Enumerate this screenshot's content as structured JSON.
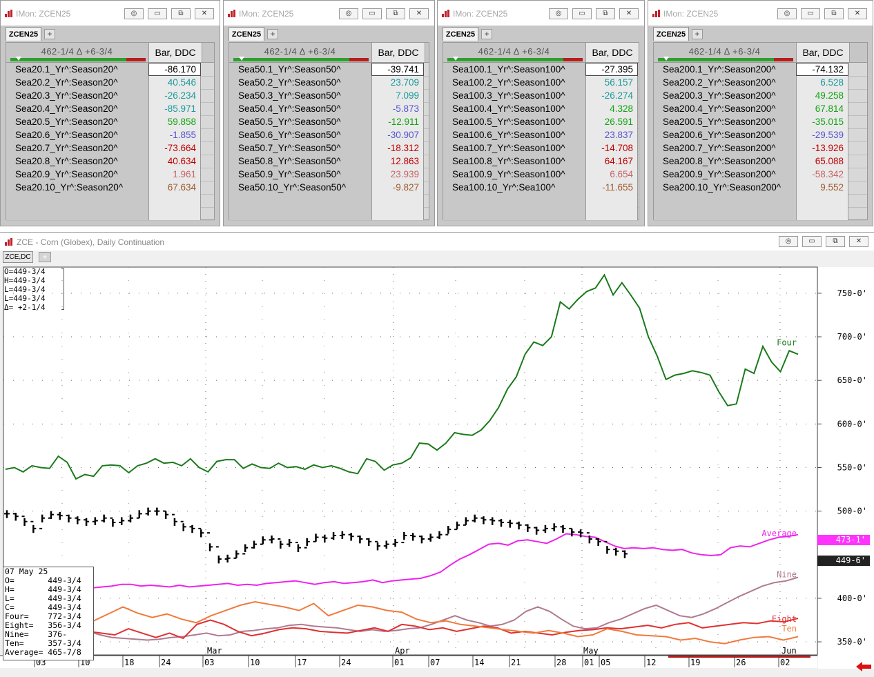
{
  "monitors": [
    {
      "title": "IMon: ZCEN25",
      "tab": "ZCEN25",
      "range": "462-1/4 Δ +6-3/4",
      "column": "Bar, DDC",
      "rows": [
        {
          "sym": "Sea20.1_Yr^:Season20^",
          "val": "-86.170",
          "color": "#000000"
        },
        {
          "sym": "Sea20.2_Yr^:Season20^",
          "val": "40.546",
          "color": "#1a9a9a"
        },
        {
          "sym": "Sea20.3_Yr^:Season20^",
          "val": "-26.234",
          "color": "#1a9a9a"
        },
        {
          "sym": "Sea20.4_Yr^:Season20^",
          "val": "-85.971",
          "color": "#1a9a9a"
        },
        {
          "sym": "Sea20.5_Yr^:Season20^",
          "val": "59.858",
          "color": "#11a411"
        },
        {
          "sym": "Sea20.6_Yr^:Season20^",
          "val": "-1.855",
          "color": "#5555d0"
        },
        {
          "sym": "Sea20.7_Yr^:Season20^",
          "val": "-73.664",
          "color": "#c00000"
        },
        {
          "sym": "Sea20.8_Yr^:Season20^",
          "val": "40.634",
          "color": "#c00000"
        },
        {
          "sym": "Sea20.9_Yr^:Season20^",
          "val": "1.961",
          "color": "#c86464"
        },
        {
          "sym": "Sea20.10_Yr^:Season20^",
          "val": "67.634",
          "color": "#a05a2c"
        }
      ]
    },
    {
      "title": "IMon: ZCEN25",
      "tab": "ZCEN25",
      "range": "462-1/4 Δ +6-3/4",
      "column": "Bar, DDC",
      "rows": [
        {
          "sym": "Sea50.1_Yr^:Season50^",
          "val": "-39.741",
          "color": "#000000"
        },
        {
          "sym": "Sea50.2_Yr^:Season50^",
          "val": "23.709",
          "color": "#1a9a9a"
        },
        {
          "sym": "Sea50.3_Yr^:Season50^",
          "val": "7.099",
          "color": "#1a9a9a"
        },
        {
          "sym": "Sea50.4_Yr^:Season50^",
          "val": "-5.873",
          "color": "#5555d0"
        },
        {
          "sym": "Sea50.5_Yr^:Season50^",
          "val": "-12.911",
          "color": "#11a411"
        },
        {
          "sym": "Sea50.6_Yr^:Season50^",
          "val": "-30.907",
          "color": "#5555d0"
        },
        {
          "sym": "Sea50.7_Yr^:Season50^",
          "val": "-18.312",
          "color": "#c00000"
        },
        {
          "sym": "Sea50.8_Yr^:Season50^",
          "val": "12.863",
          "color": "#c00000"
        },
        {
          "sym": "Sea50.9_Yr^:Season50^",
          "val": "23.939",
          "color": "#c86464"
        },
        {
          "sym": "Sea50.10_Yr^:Season50^",
          "val": "-9.827",
          "color": "#a05a2c"
        }
      ]
    },
    {
      "title": "IMon: ZCEN25",
      "tab": "ZCEN25",
      "range": "462-1/4 Δ +6-3/4",
      "column": "Bar, DDC",
      "rows": [
        {
          "sym": "Sea100.1_Yr^:Season100^",
          "val": "-27.395",
          "color": "#000000"
        },
        {
          "sym": "Sea100.2_Yr^:Season100^",
          "val": "56.157",
          "color": "#1a9a9a"
        },
        {
          "sym": "Sea100.3_Yr^:Season100^",
          "val": "-26.274",
          "color": "#1a9a9a"
        },
        {
          "sym": "Sea100.4_Yr^:Season100^",
          "val": "4.328",
          "color": "#11a411"
        },
        {
          "sym": "Sea100.5_Yr^:Season100^",
          "val": "26.591",
          "color": "#11a411"
        },
        {
          "sym": "Sea100.6_Yr^:Season100^",
          "val": "23.837",
          "color": "#5555d0"
        },
        {
          "sym": "Sea100.7_Yr^:Season100^",
          "val": "-14.708",
          "color": "#c00000"
        },
        {
          "sym": "Sea100.8_Yr^:Season100^",
          "val": "64.167",
          "color": "#c00000"
        },
        {
          "sym": "Sea100.9_Yr^:Season100^",
          "val": "6.654",
          "color": "#c86464"
        },
        {
          "sym": "Sea100.10_Yr^:Sea100^",
          "val": "-11.655",
          "color": "#a05a2c"
        }
      ]
    },
    {
      "title": "IMon: ZCEN25",
      "tab": "ZCEN25",
      "range": "462-1/4 Δ +6-3/4",
      "column": "Bar, DDC",
      "rows": [
        {
          "sym": "Sea200.1_Yr^:Season200^",
          "val": "-74.132",
          "color": "#000000"
        },
        {
          "sym": "Sea200.2_Yr^:Season200^",
          "val": "6.528",
          "color": "#1a9a9a"
        },
        {
          "sym": "Sea200.3_Yr^:Season200^",
          "val": "49.258",
          "color": "#11a411"
        },
        {
          "sym": "Sea200.4_Yr^:Season200^",
          "val": "67.814",
          "color": "#11a411"
        },
        {
          "sym": "Sea200.5_Yr^:Season200^",
          "val": "-35.015",
          "color": "#11a411"
        },
        {
          "sym": "Sea200.6_Yr^:Season200^",
          "val": "-29.539",
          "color": "#5555d0"
        },
        {
          "sym": "Sea200.7_Yr^:Season200^",
          "val": "-13.926",
          "color": "#c00000"
        },
        {
          "sym": "Sea200.8_Yr^:Season200^",
          "val": "65.088",
          "color": "#c00000"
        },
        {
          "sym": "Sea200.9_Yr^:Season200^",
          "val": "-58.342",
          "color": "#c86464"
        },
        {
          "sym": "Sea200.10_Yr^:Season200^",
          "val": "9.552",
          "color": "#a05a2c"
        }
      ]
    }
  ],
  "chart_window": {
    "title": "ZCE - Corn (Globex), Daily Continuation",
    "tab": "ZCE,DC",
    "ohlc_lines": [
      "O=449-3/4",
      "H=449-3/4",
      "L=449-3/4",
      "L=449-3/4",
      "Δ= +2-1/4"
    ],
    "data_panel": [
      "07 May 25",
      "O=       449-3/4",
      "H=       449-3/4",
      "L=       449-3/4",
      "C=       449-3/4",
      "Four=    772-3/4",
      "Eight=   356-3/4",
      "Nine=    376-",
      "Ten=     357-3/4",
      "Average= 465-7/8"
    ],
    "price_tags": [
      {
        "text": "473-1'",
        "bg": "#ff33ff",
        "fg": "#ffffff"
      },
      {
        "text": "449-6'",
        "bg": "#222222",
        "fg": "#ffffff"
      }
    ]
  },
  "chart_data": {
    "type": "line",
    "yaxis_labels": [
      "750-0'",
      "700-0'",
      "650-0'",
      "600-0'",
      "550-0'",
      "500-0'",
      "400-0'",
      "350-0'"
    ],
    "ylim": [
      335,
      780
    ],
    "x_month_labels": [
      "Mar",
      "Apr",
      "May",
      "Jun"
    ],
    "x_day_labels": [
      "03",
      "10",
      "18",
      "24",
      "03",
      "10",
      "17",
      "24",
      "01",
      "07",
      "14",
      "21",
      "28",
      "01",
      "05",
      "12",
      "19",
      "26",
      "02"
    ],
    "series": [
      {
        "name": "Four",
        "color": "#1a7a1a",
        "values": [
          548,
          550,
          545,
          552,
          550,
          549,
          563,
          556,
          537,
          542,
          540,
          552,
          553,
          552,
          544,
          552,
          555,
          560,
          555,
          556,
          552,
          560,
          550,
          545,
          557,
          559,
          559,
          549,
          554,
          550,
          549,
          555,
          550,
          551,
          548,
          553,
          550,
          552,
          549,
          545,
          543,
          560,
          557,
          547,
          553,
          555,
          561,
          578,
          577,
          570,
          578,
          590,
          588,
          587,
          593,
          604,
          619,
          640,
          654,
          680,
          694,
          690,
          700,
          740,
          732,
          743,
          752,
          756,
          771,
          748,
          762,
          748,
          733,
          700,
          678,
          651,
          656,
          658,
          661,
          659,
          656,
          637,
          621,
          623,
          663,
          658,
          689,
          671,
          660,
          684,
          680
        ]
      },
      {
        "name": "Average",
        "color": "#ee22ee",
        "values": [
          411,
          414,
          419,
          417,
          415,
          416,
          414,
          413,
          413,
          412,
          413,
          414,
          416,
          416,
          414,
          415,
          414,
          413,
          415,
          413,
          414,
          415,
          416,
          417,
          415,
          416,
          415,
          417,
          418,
          419,
          420,
          418,
          416,
          418,
          419,
          417,
          418,
          419,
          421,
          418,
          420,
          421,
          422,
          423,
          426,
          430,
          438,
          445,
          450,
          456,
          462,
          463,
          461,
          466,
          467,
          465,
          463,
          468,
          474,
          473,
          471,
          470,
          465,
          460,
          457,
          458,
          457,
          458,
          456,
          455,
          456,
          452,
          450,
          449,
          450,
          458,
          460,
          459,
          463,
          467,
          470,
          471,
          473
        ]
      },
      {
        "name": "Nine",
        "color": "#b07a90",
        "values": [
          375,
          372,
          365,
          368,
          365,
          362,
          360,
          362,
          358,
          355,
          354,
          353,
          352,
          353,
          355,
          356,
          358,
          360,
          357,
          358,
          362,
          363,
          365,
          366,
          369,
          370,
          368,
          367,
          366,
          364,
          362,
          364,
          362,
          363,
          365,
          366,
          370,
          375,
          380,
          375,
          372,
          368,
          370,
          375,
          385,
          390,
          385,
          376,
          368,
          365,
          366,
          372,
          376,
          382,
          388,
          392,
          386,
          380,
          378,
          382,
          388,
          395,
          402,
          408,
          414,
          418,
          420,
          424
        ]
      },
      {
        "name": "Eight",
        "color": "#e03030",
        "values": [
          372,
          374,
          370,
          365,
          368,
          366,
          362,
          360,
          358,
          365,
          360,
          355,
          360,
          354,
          370,
          375,
          370,
          362,
          357,
          360,
          364,
          366,
          365,
          362,
          361,
          360,
          363,
          366,
          362,
          370,
          368,
          364,
          366,
          362,
          365,
          368,
          366,
          360,
          362,
          360,
          358,
          361,
          363,
          364,
          366,
          365,
          367,
          369,
          366,
          370,
          372,
          366,
          368,
          370,
          372,
          371,
          374,
          373,
          377
        ]
      },
      {
        "name": "Ten",
        "color": "#f07a3c",
        "values": [
          382,
          388,
          385,
          380,
          384,
          378,
          374,
          382,
          390,
          383,
          378,
          382,
          376,
          372,
          380,
          386,
          392,
          396,
          393,
          390,
          386,
          394,
          380,
          386,
          392,
          390,
          386,
          384,
          376,
          372,
          374,
          370,
          368,
          366,
          364,
          362,
          360,
          363,
          360,
          356,
          358,
          365,
          362,
          358,
          357,
          356,
          352,
          354,
          350,
          348,
          352,
          355,
          356,
          352,
          356
        ]
      },
      {
        "name": "Price",
        "color": "#000000",
        "values": [
          497,
          494,
          488,
          480,
          492,
          496,
          495,
          492,
          490,
          488,
          489,
          492,
          487,
          489,
          492,
          497,
          500,
          500,
          496,
          488,
          482,
          480,
          475,
          459,
          445,
          446,
          451,
          458,
          462,
          467,
          468,
          462,
          464,
          458,
          465,
          470,
          469,
          472,
          473,
          471,
          468,
          465,
          460,
          462,
          464,
          472,
          471,
          468,
          470,
          473,
          479,
          484,
          489,
          492,
          490,
          489,
          487,
          486,
          484,
          481,
          478,
          480,
          482,
          480,
          476,
          475,
          468,
          465,
          456,
          454,
          451
        ]
      }
    ],
    "legend_labels": [
      "Four",
      "Average",
      "Nine",
      "Eight",
      "Ten"
    ]
  }
}
